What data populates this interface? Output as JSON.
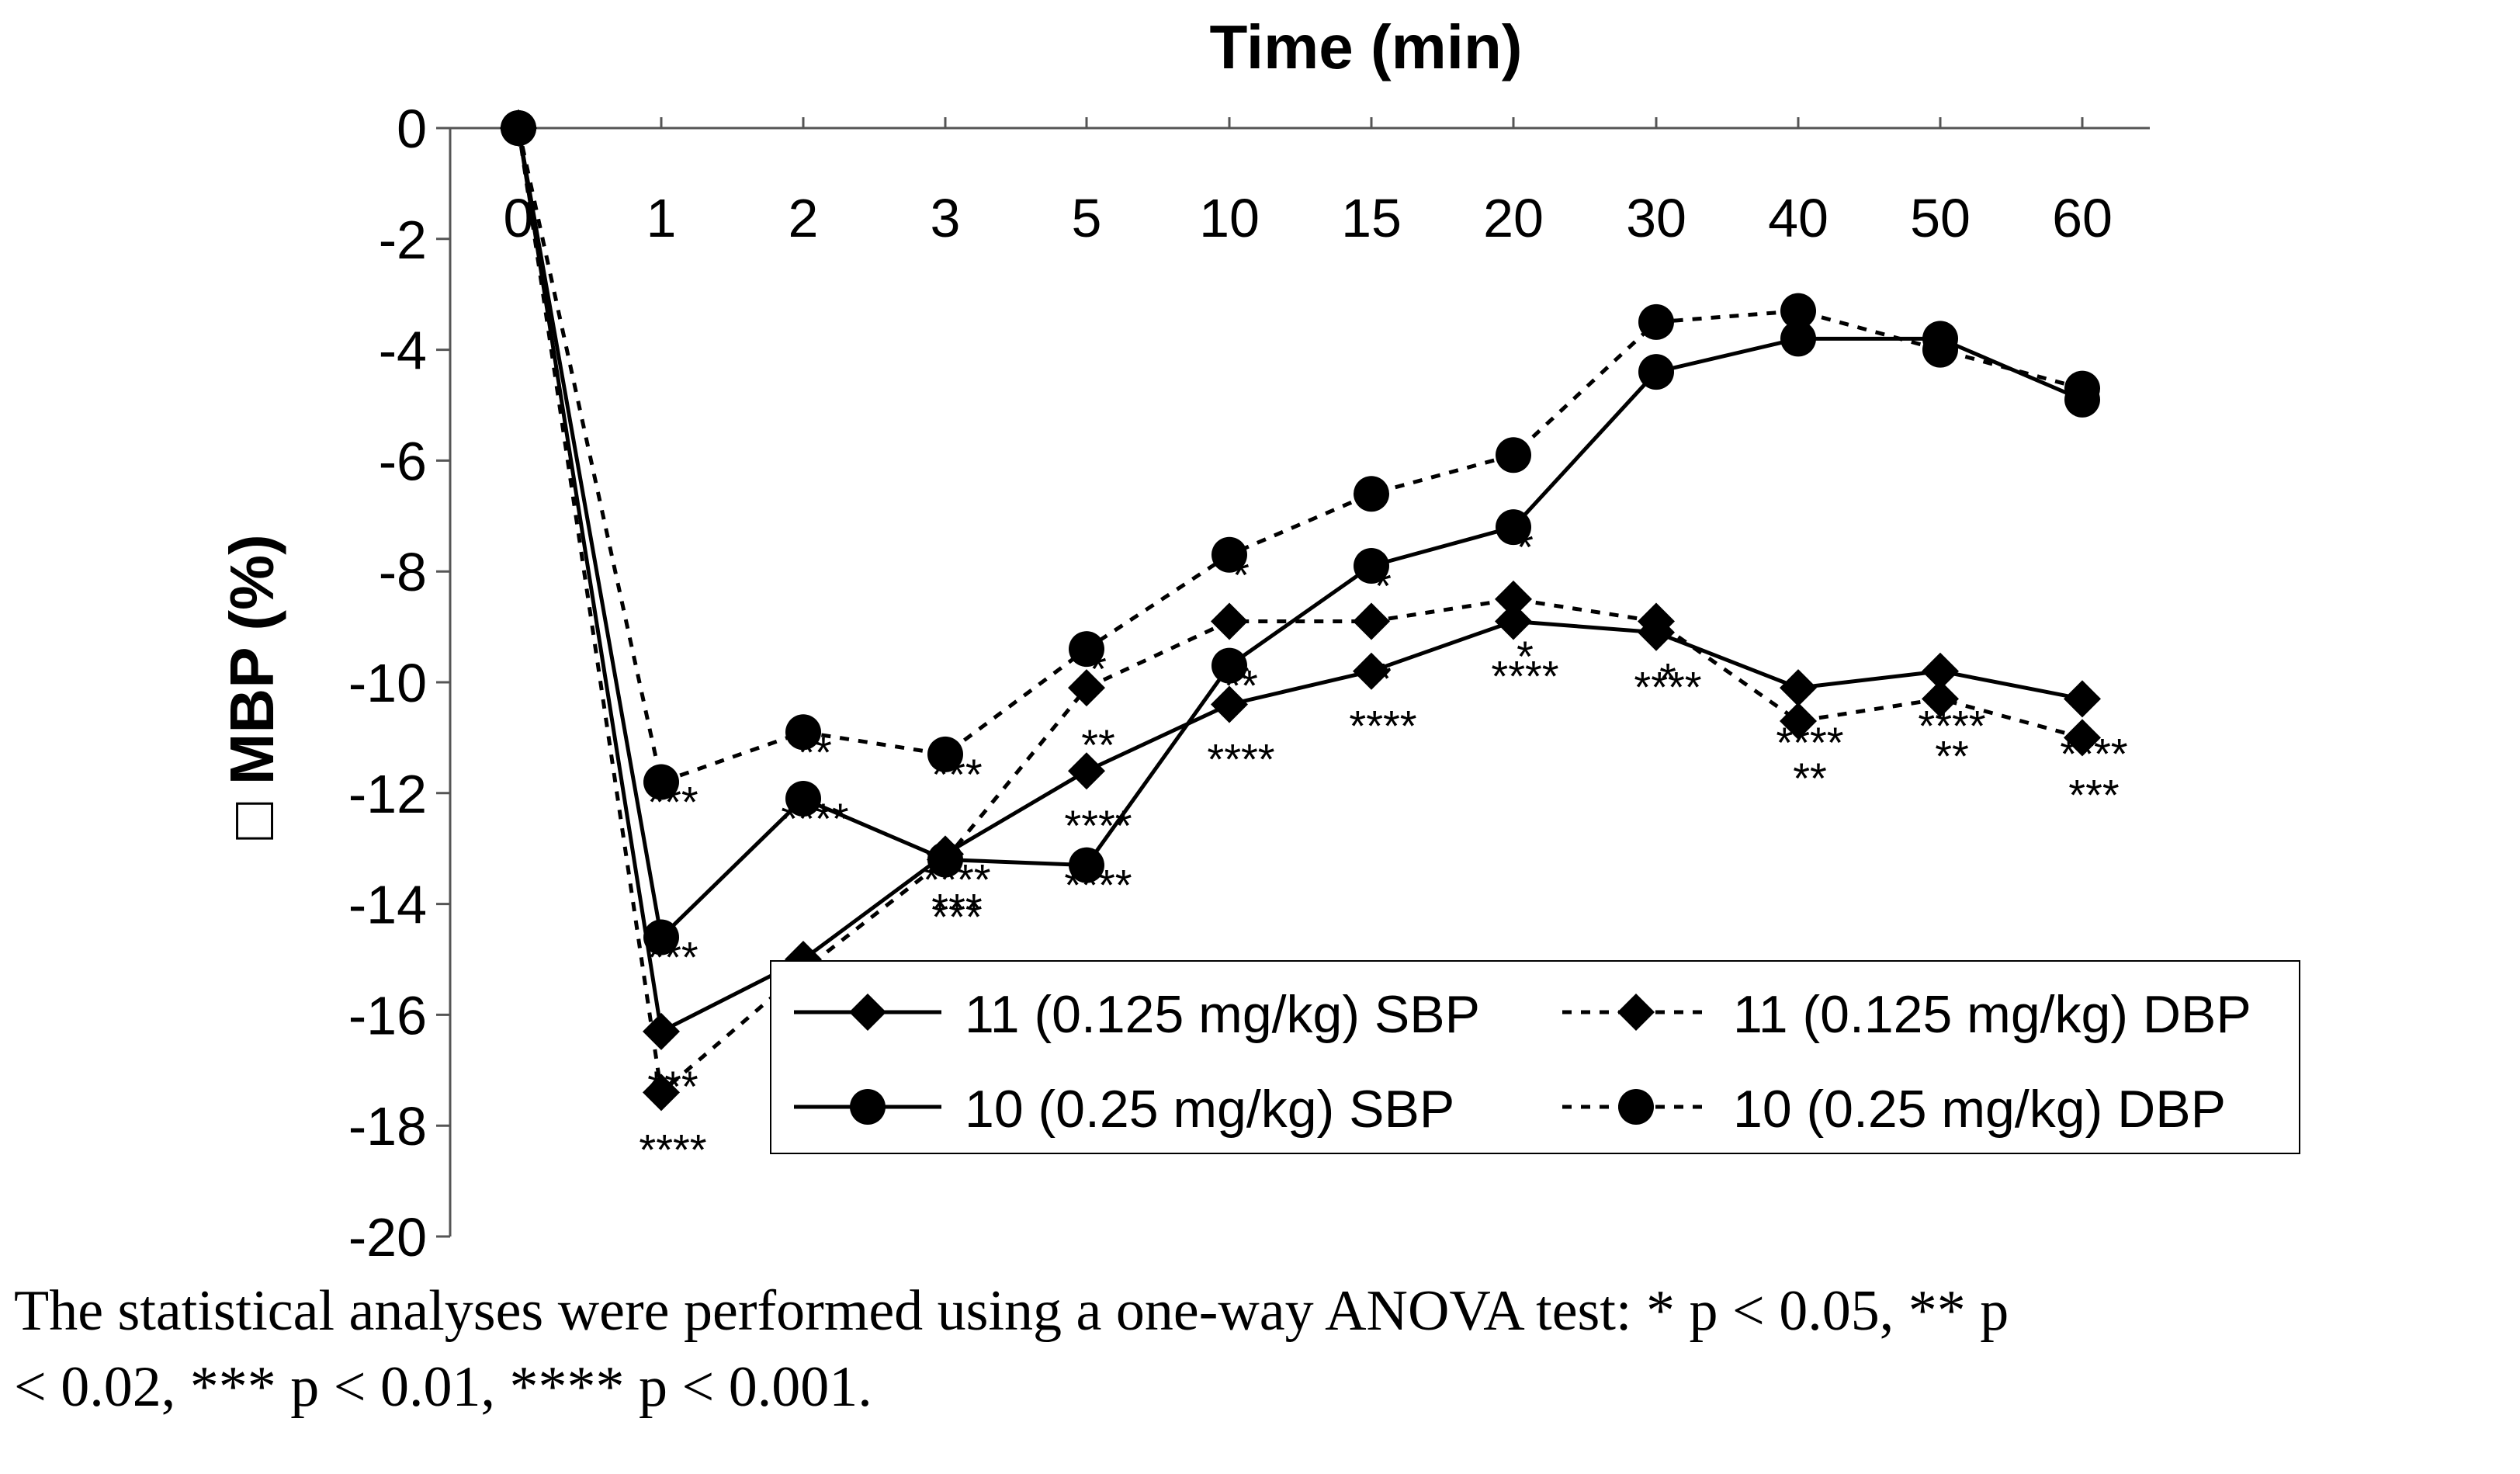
{
  "chart_data": {
    "type": "line",
    "title": "Time (min)",
    "xlabel": "Time (min)",
    "ylabel": "□ MBP (%)",
    "ylim": [
      -20,
      0
    ],
    "y_ticks": [
      "0",
      "-2",
      "-4",
      "-6",
      "-8",
      "-10",
      "-12",
      "-14",
      "-16",
      "-18",
      "-20"
    ],
    "categories": [
      "0",
      "1",
      "2",
      "3",
      "5",
      "10",
      "15",
      "20",
      "30",
      "40",
      "50",
      "60"
    ],
    "series": [
      {
        "name": "11 (0.125 mg/kg) SBP",
        "marker": "diamond",
        "dash": "solid",
        "values": [
          0,
          -16.3,
          -15.0,
          -13.1,
          -11.6,
          -10.4,
          -9.8,
          -8.9,
          -9.1,
          -10.1,
          -9.8,
          -10.3
        ],
        "annotations": [
          "",
          "***",
          "****",
          "***",
          "****",
          "****",
          "****",
          "****",
          "****",
          "****",
          "****",
          "****"
        ]
      },
      {
        "name": "11 (0.125 mg/kg) DBP",
        "marker": "diamond",
        "dash": "dotted",
        "values": [
          0,
          -17.4,
          -15.2,
          -13.2,
          -10.1,
          -8.9,
          -8.9,
          -8.5,
          -8.9,
          -10.7,
          -10.3,
          -11.0
        ],
        "annotations": [
          "",
          "****",
          "****",
          "***",
          "**",
          "*",
          "*",
          "*",
          "*",
          "**",
          "**",
          "***"
        ]
      },
      {
        "name": "10 (0.25 mg/kg) SBP",
        "marker": "circle",
        "dash": "solid",
        "values": [
          0,
          -14.6,
          -12.1,
          -13.2,
          -13.3,
          -9.7,
          -7.9,
          -7.2,
          -4.4,
          -3.8,
          -3.8,
          -4.9
        ],
        "annotations": [
          "",
          "***",
          "****",
          "****",
          "****",
          "**",
          "*",
          "*",
          "",
          "",
          "",
          ""
        ]
      },
      {
        "name": "10 (0.25 mg/kg) DBP",
        "marker": "circle",
        "dash": "dotted",
        "values": [
          0,
          -11.8,
          -10.9,
          -11.3,
          -9.4,
          -7.7,
          -6.6,
          -5.9,
          -3.5,
          -3.3,
          -4.0,
          -4.7
        ],
        "annotations": [
          "",
          "***",
          "**",
          "***",
          "*",
          "*",
          "",
          "",
          "",
          "",
          "",
          ""
        ]
      }
    ],
    "legend_position": "bottom-right inside plot",
    "grid": false
  },
  "caption": {
    "line1": "The statistical analyses were performed using a one-way ANOVA test: * p < 0.05, ** p",
    "line2": "< 0.02, *** p < 0.01, **** p < 0.001."
  },
  "colors": {
    "line": "#000000",
    "background": "#ffffff"
  }
}
